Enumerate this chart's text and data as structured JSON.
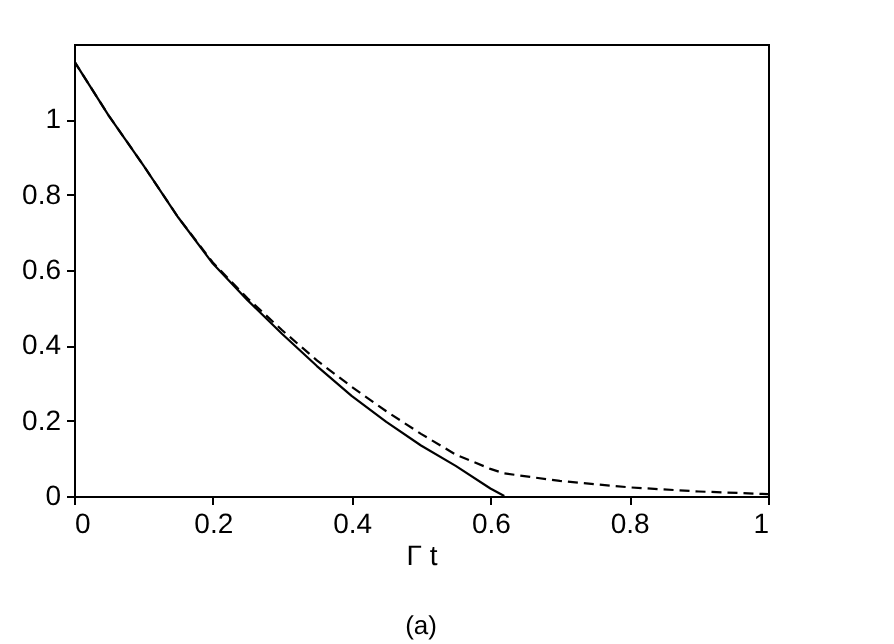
{
  "chart_data": {
    "type": "line",
    "xlabel": "Γ t",
    "annotations": [
      "(a)"
    ],
    "xlim": [
      0,
      1
    ],
    "ylim": [
      0,
      1.2
    ],
    "xticks": [
      0,
      0.2,
      0.4,
      0.6,
      0.8,
      1
    ],
    "yticks": [
      0,
      0.2,
      0.4,
      0.6,
      0.8,
      1
    ],
    "grid": false,
    "series": [
      {
        "color": "#000000",
        "line_style": "solid",
        "x": [
          0,
          0.05,
          0.1,
          0.15,
          0.2,
          0.25,
          0.3,
          0.35,
          0.4,
          0.45,
          0.5,
          0.55,
          0.6,
          0.62
        ],
        "values": [
          1.155,
          1.01,
          0.878,
          0.74,
          0.617,
          0.52,
          0.43,
          0.345,
          0.266,
          0.197,
          0.134,
          0.08,
          0.02,
          0
        ]
      },
      {
        "color": "#000000",
        "line_style": "dashed",
        "x": [
          0,
          0.05,
          0.1,
          0.15,
          0.2,
          0.25,
          0.3,
          0.35,
          0.4,
          0.45,
          0.5,
          0.55,
          0.6,
          0.62,
          0.7,
          0.8,
          0.9,
          1
        ],
        "values": [
          1.155,
          1.01,
          0.878,
          0.74,
          0.62,
          0.525,
          0.44,
          0.36,
          0.29,
          0.225,
          0.165,
          0.11,
          0.072,
          0.06,
          0.04,
          0.023,
          0.012,
          0.005
        ]
      }
    ]
  }
}
